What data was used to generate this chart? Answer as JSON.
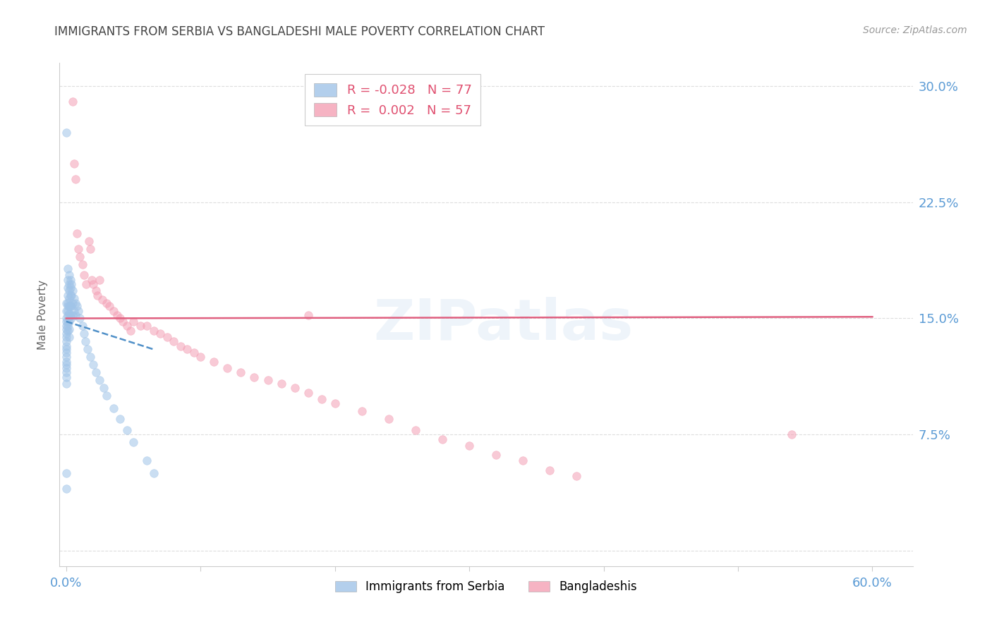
{
  "title": "IMMIGRANTS FROM SERBIA VS BANGLADESHI MALE POVERTY CORRELATION CHART",
  "source": "Source: ZipAtlas.com",
  "ylabel": "Male Poverty",
  "xlim": [
    -0.005,
    0.63
  ],
  "ylim": [
    -0.01,
    0.315
  ],
  "y_ticks": [
    0.0,
    0.075,
    0.15,
    0.225,
    0.3
  ],
  "y_tick_labels": [
    "",
    "7.5%",
    "15.0%",
    "22.5%",
    "30.0%"
  ],
  "x_ticks": [
    0.0,
    0.1,
    0.2,
    0.3,
    0.4,
    0.5,
    0.6
  ],
  "x_tick_labels": [
    "0.0%",
    "",
    "",
    "",
    "",
    "",
    "60.0%"
  ],
  "serbia_color": "#a0c4e8",
  "bangladesh_color": "#f4a0b5",
  "serbia_trend_color": "#5090c8",
  "bangladesh_trend_color": "#e06080",
  "tick_label_color": "#5b9bd5",
  "title_color": "#444444",
  "background_color": "#ffffff",
  "grid_color": "#dddddd",
  "watermark": "ZIPatlas",
  "marker_size": 70,
  "marker_alpha": 0.55,
  "legend_R1": "-0.028",
  "legend_N1": "77",
  "legend_R2": "0.002",
  "legend_N2": "57",
  "serbia_scatter_x": [
    0.0,
    0.0,
    0.0,
    0.0,
    0.0,
    0.0,
    0.0,
    0.0,
    0.0,
    0.0,
    0.0,
    0.0,
    0.0,
    0.0,
    0.0,
    0.0,
    0.0,
    0.0,
    0.0,
    0.0,
    0.001,
    0.001,
    0.001,
    0.001,
    0.001,
    0.001,
    0.001,
    0.001,
    0.001,
    0.001,
    0.002,
    0.002,
    0.002,
    0.002,
    0.002,
    0.002,
    0.002,
    0.002,
    0.002,
    0.003,
    0.003,
    0.003,
    0.003,
    0.003,
    0.004,
    0.004,
    0.004,
    0.004,
    0.005,
    0.005,
    0.005,
    0.006,
    0.006,
    0.007,
    0.007,
    0.008,
    0.009,
    0.01,
    0.012,
    0.013,
    0.014,
    0.016,
    0.018,
    0.02,
    0.022,
    0.025,
    0.028,
    0.03,
    0.035,
    0.04,
    0.045,
    0.05,
    0.06,
    0.065,
    0.0,
    0.0,
    0.001
  ],
  "serbia_scatter_y": [
    0.27,
    0.16,
    0.155,
    0.15,
    0.148,
    0.145,
    0.143,
    0.14,
    0.138,
    0.135,
    0.132,
    0.13,
    0.128,
    0.125,
    0.122,
    0.12,
    0.118,
    0.115,
    0.112,
    0.108,
    0.175,
    0.17,
    0.165,
    0.16,
    0.158,
    0.155,
    0.152,
    0.148,
    0.145,
    0.142,
    0.178,
    0.172,
    0.168,
    0.163,
    0.158,
    0.153,
    0.148,
    0.143,
    0.138,
    0.175,
    0.17,
    0.165,
    0.158,
    0.152,
    0.172,
    0.165,
    0.158,
    0.15,
    0.168,
    0.16,
    0.152,
    0.163,
    0.155,
    0.16,
    0.152,
    0.158,
    0.155,
    0.15,
    0.145,
    0.14,
    0.135,
    0.13,
    0.125,
    0.12,
    0.115,
    0.11,
    0.105,
    0.1,
    0.092,
    0.085,
    0.078,
    0.07,
    0.058,
    0.05,
    0.05,
    0.04,
    0.182
  ],
  "bangladesh_scatter_x": [
    0.005,
    0.006,
    0.007,
    0.008,
    0.009,
    0.01,
    0.012,
    0.013,
    0.015,
    0.017,
    0.018,
    0.019,
    0.02,
    0.022,
    0.023,
    0.025,
    0.027,
    0.03,
    0.032,
    0.035,
    0.038,
    0.04,
    0.042,
    0.045,
    0.048,
    0.05,
    0.055,
    0.06,
    0.065,
    0.07,
    0.075,
    0.08,
    0.085,
    0.09,
    0.095,
    0.1,
    0.11,
    0.12,
    0.13,
    0.14,
    0.15,
    0.16,
    0.17,
    0.18,
    0.19,
    0.2,
    0.22,
    0.24,
    0.26,
    0.28,
    0.3,
    0.32,
    0.34,
    0.36,
    0.38,
    0.54,
    0.18
  ],
  "bangladesh_scatter_y": [
    0.29,
    0.25,
    0.24,
    0.205,
    0.195,
    0.19,
    0.185,
    0.178,
    0.172,
    0.2,
    0.195,
    0.175,
    0.172,
    0.168,
    0.165,
    0.175,
    0.162,
    0.16,
    0.158,
    0.155,
    0.152,
    0.15,
    0.148,
    0.145,
    0.142,
    0.148,
    0.145,
    0.145,
    0.142,
    0.14,
    0.138,
    0.135,
    0.132,
    0.13,
    0.128,
    0.125,
    0.122,
    0.118,
    0.115,
    0.112,
    0.11,
    0.108,
    0.105,
    0.102,
    0.098,
    0.095,
    0.09,
    0.085,
    0.078,
    0.072,
    0.068,
    0.062,
    0.058,
    0.052,
    0.048,
    0.075,
    0.152
  ],
  "serbia_trend_x": [
    0.0,
    0.065
  ],
  "serbia_trend_y": [
    0.148,
    0.13
  ],
  "bangladesh_trend_x": [
    0.0,
    0.6
  ],
  "bangladesh_trend_y": [
    0.15,
    0.151
  ]
}
